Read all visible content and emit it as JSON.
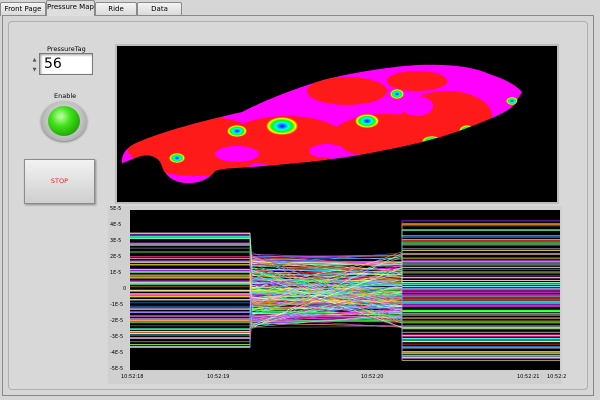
{
  "tabs": [
    {
      "label": "Front Page",
      "active": false
    },
    {
      "label": "Pressure Map",
      "active": true
    },
    {
      "label": "Ride Height",
      "active": false
    },
    {
      "label": "Data Review",
      "active": false
    }
  ],
  "controls": {
    "pressure_tag_label": "PressureTag",
    "pressure_tag_value": "56",
    "enable_label": "Enable",
    "enable_state": true,
    "stop_label": "STOP"
  },
  "colors": {
    "enable_led": "#3fdc1a",
    "stop_text": "#e02020",
    "pressure_map_background": "#000000",
    "pressure_palette": [
      "#ff00ff",
      "#ff1a1a",
      "#ffff00",
      "#00ff00",
      "#00ffff",
      "#0000ff"
    ]
  },
  "pressure_map": {
    "description_visible": false
  },
  "chart_data": {
    "type": "line",
    "y_tick_labels": [
      "5E-5",
      "4E-5",
      "3E-5",
      "2E-5",
      "1E-5",
      "0",
      "-1E-5",
      "-2E-5",
      "-3E-5",
      "-4E-5",
      "-5E-5"
    ],
    "ylim": [
      -5e-05,
      5e-05
    ],
    "x_tick_labels": [
      "10:52:18",
      "10:52:19",
      "10:52:20",
      "10:52:21",
      "10:52:2"
    ],
    "series_count_approx": 120,
    "segments_time_labels": {
      "start": "10:52:18",
      "split_1": "10:52:19",
      "split_2": "10:52:20",
      "end": "10:52:21"
    },
    "note": ""
  }
}
